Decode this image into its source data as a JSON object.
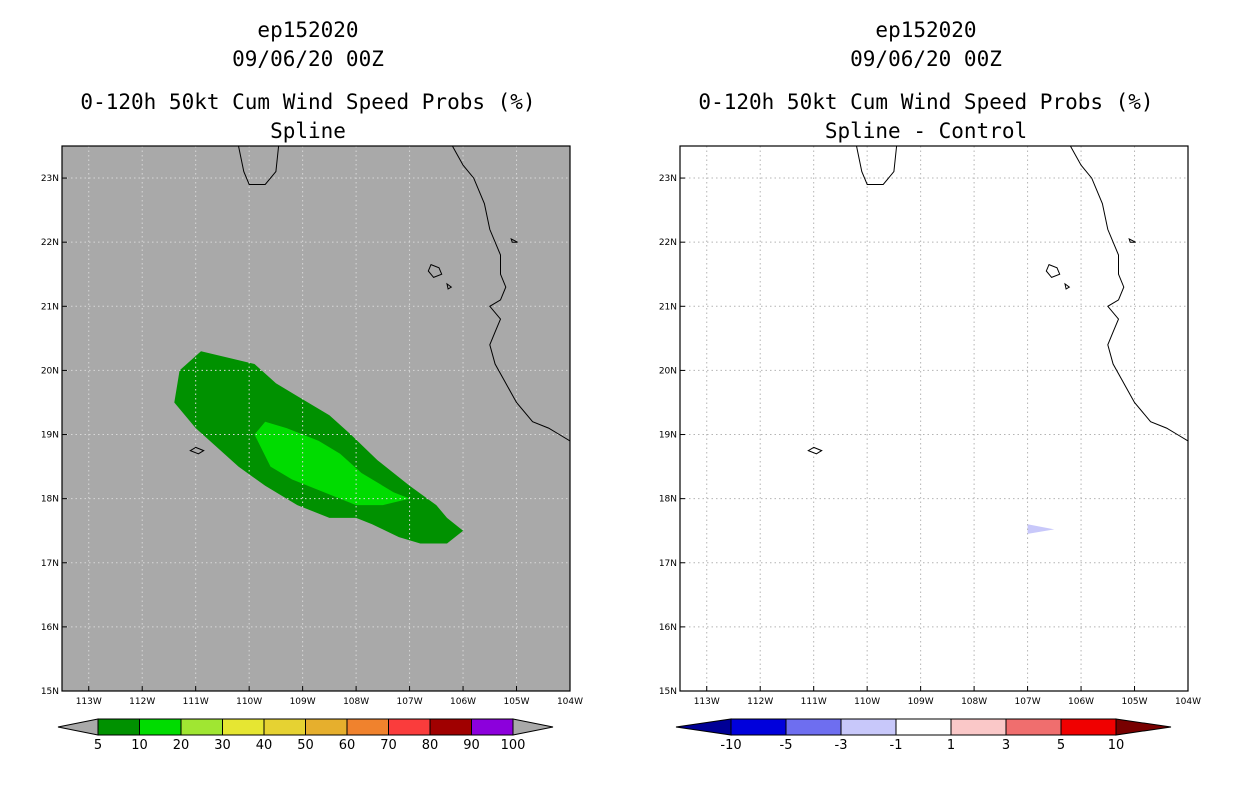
{
  "chart_data": [
    {
      "type": "heatmap",
      "title_lines": [
        "ep152020",
        "09/06/20 00Z",
        "0-120h 50kt Cum Wind Speed Probs (%)",
        "Spline"
      ],
      "x_ticks": [
        "113W",
        "112W",
        "111W",
        "110W",
        "109W",
        "108W",
        "107W",
        "106W",
        "105W",
        "104W"
      ],
      "y_ticks": [
        "15N",
        "16N",
        "17N",
        "18N",
        "19N",
        "20N",
        "21N",
        "22N",
        "23N"
      ],
      "xlim": [
        -113.5,
        -104.0
      ],
      "ylim": [
        15.0,
        23.5
      ],
      "background_color": "#a9a9a9",
      "colorbar": {
        "labels": [
          "5",
          "10",
          "20",
          "30",
          "40",
          "50",
          "60",
          "70",
          "80",
          "90",
          "100"
        ],
        "colors": [
          "#009100",
          "#00dc00",
          "#a0e632",
          "#e6e632",
          "#e6d232",
          "#e6af2d",
          "#f0822d",
          "#fa3c3c",
          "#a00000",
          "#8c00dc"
        ],
        "end_colors": [
          "#a9a9a9",
          "#a9a9a9"
        ]
      },
      "contours": [
        {
          "level": "5-10",
          "color": "#009100",
          "points": [
            [
              -111.4,
              19.5
            ],
            [
              -111.3,
              20.0
            ],
            [
              -110.9,
              20.3
            ],
            [
              -110.4,
              20.2
            ],
            [
              -109.9,
              20.1
            ],
            [
              -109.5,
              19.8
            ],
            [
              -109.1,
              19.6
            ],
            [
              -108.5,
              19.3
            ],
            [
              -108.1,
              19.0
            ],
            [
              -107.6,
              18.6
            ],
            [
              -107.0,
              18.2
            ],
            [
              -106.5,
              17.9
            ],
            [
              -106.3,
              17.7
            ],
            [
              -106.0,
              17.5
            ],
            [
              -106.3,
              17.3
            ],
            [
              -106.8,
              17.3
            ],
            [
              -107.2,
              17.4
            ],
            [
              -107.7,
              17.6
            ],
            [
              -108.0,
              17.7
            ],
            [
              -108.5,
              17.7
            ],
            [
              -109.1,
              17.9
            ],
            [
              -109.7,
              18.2
            ],
            [
              -110.2,
              18.5
            ],
            [
              -110.6,
              18.8
            ],
            [
              -111.0,
              19.1
            ]
          ]
        },
        {
          "level": "10-20",
          "color": "#00dc00",
          "points": [
            [
              -109.9,
              19.0
            ],
            [
              -109.7,
              19.2
            ],
            [
              -109.3,
              19.1
            ],
            [
              -108.7,
              18.9
            ],
            [
              -108.3,
              18.7
            ],
            [
              -107.9,
              18.4
            ],
            [
              -107.3,
              18.1
            ],
            [
              -107.0,
              18.0
            ],
            [
              -107.5,
              17.9
            ],
            [
              -108.0,
              17.9
            ],
            [
              -108.6,
              18.1
            ],
            [
              -109.2,
              18.3
            ],
            [
              -109.6,
              18.5
            ]
          ]
        }
      ]
    },
    {
      "type": "heatmap",
      "title_lines": [
        "ep152020",
        "09/06/20 00Z",
        "0-120h 50kt Cum Wind Speed Probs (%)",
        "Spline - Control"
      ],
      "x_ticks": [
        "113W",
        "112W",
        "111W",
        "110W",
        "109W",
        "108W",
        "107W",
        "106W",
        "105W",
        "104W"
      ],
      "y_ticks": [
        "15N",
        "16N",
        "17N",
        "18N",
        "19N",
        "20N",
        "21N",
        "22N",
        "23N"
      ],
      "xlim": [
        -113.5,
        -104.0
      ],
      "ylim": [
        15.0,
        23.5
      ],
      "background_color": "#ffffff",
      "colorbar": {
        "labels": [
          "-10",
          "-5",
          "-3",
          "-1",
          "1",
          "3",
          "5",
          "10"
        ],
        "colors": [
          "#0000dc",
          "#6e6ef0",
          "#c8c8fa",
          "#ffffff",
          "#fac8c8",
          "#f06e6e",
          "#f00000"
        ],
        "end_colors": [
          "#000096",
          "#780000"
        ]
      },
      "contours": [
        {
          "level": "-3 to -1",
          "color": "#c8c8fa",
          "points": [
            [
              -107.0,
              17.6
            ],
            [
              -106.5,
              17.52
            ],
            [
              -107.0,
              17.45
            ]
          ]
        }
      ]
    }
  ],
  "map": {
    "coastline": [
      [
        -110.2,
        23.5
      ],
      [
        -110.1,
        23.1
      ],
      [
        -110.0,
        22.9
      ],
      [
        -109.7,
        22.9
      ],
      [
        -109.5,
        23.1
      ],
      [
        -109.45,
        23.5
      ]
    ],
    "mainland": [
      [
        -106.2,
        23.5
      ],
      [
        -106.0,
        23.2
      ],
      [
        -105.8,
        23.0
      ],
      [
        -105.6,
        22.6
      ],
      [
        -105.5,
        22.2
      ],
      [
        -105.3,
        21.8
      ],
      [
        -105.3,
        21.5
      ],
      [
        -105.2,
        21.3
      ],
      [
        -105.3,
        21.1
      ],
      [
        -105.5,
        21.0
      ],
      [
        -105.3,
        20.8
      ],
      [
        -105.4,
        20.6
      ],
      [
        -105.5,
        20.4
      ],
      [
        -105.4,
        20.1
      ],
      [
        -105.2,
        19.8
      ],
      [
        -105.0,
        19.5
      ],
      [
        -104.7,
        19.2
      ],
      [
        -104.4,
        19.1
      ],
      [
        -104.2,
        19.0
      ],
      [
        -104.0,
        18.9
      ]
    ],
    "islands": [
      [
        [
          -106.6,
          21.65
        ],
        [
          -106.45,
          21.6
        ],
        [
          -106.4,
          21.5
        ],
        [
          -106.55,
          21.45
        ],
        [
          -106.65,
          21.55
        ]
      ],
      [
        [
          -106.3,
          21.35
        ],
        [
          -106.22,
          21.3
        ],
        [
          -106.28,
          21.27
        ]
      ],
      [
        [
          -111.0,
          18.8
        ],
        [
          -110.85,
          18.75
        ],
        [
          -110.95,
          18.7
        ],
        [
          -111.1,
          18.75
        ]
      ],
      [
        [
          -105.1,
          22.05
        ],
        [
          -104.98,
          22.0
        ],
        [
          -105.08,
          22.0
        ]
      ]
    ]
  }
}
